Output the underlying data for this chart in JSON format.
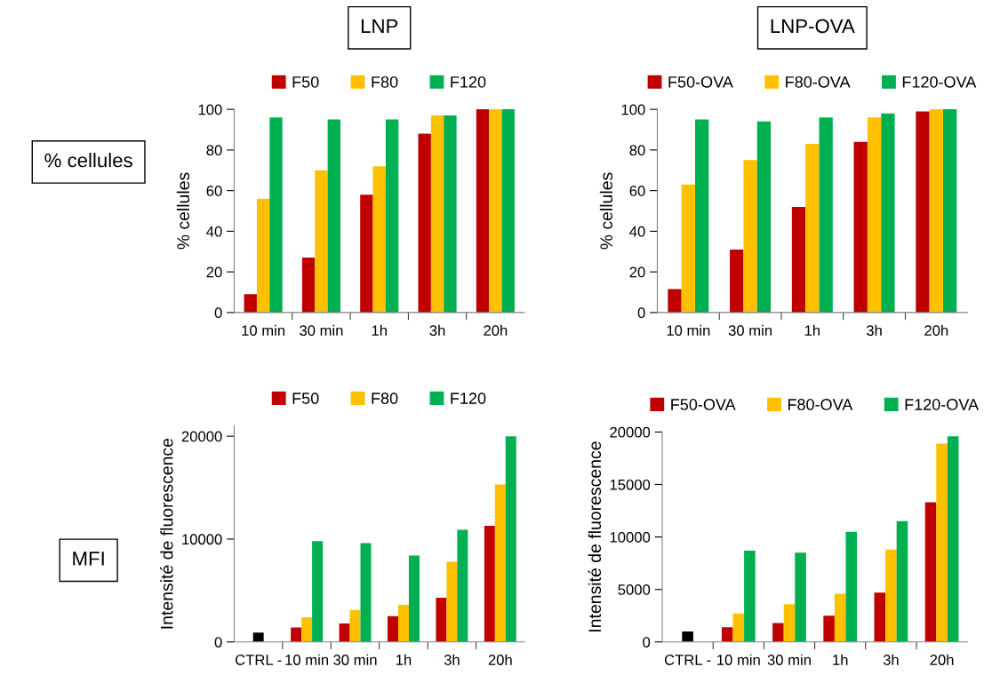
{
  "chart_data": [
    {
      "type": "bar",
      "title": "LNP",
      "annotations": [
        "% cellules"
      ],
      "ylabel": "% cellules",
      "categories": [
        "10 min",
        "30 min",
        "1h",
        "3h",
        "20h"
      ],
      "ylim": [
        0,
        100
      ],
      "yticks": [
        0,
        20,
        40,
        60,
        80,
        100
      ],
      "legend": "top",
      "grid": false,
      "series": [
        {
          "name": "F50",
          "color": "#c00000",
          "values": [
            9,
            27,
            58,
            88,
            100
          ]
        },
        {
          "name": "F80",
          "color": "#ffc000",
          "values": [
            56,
            70,
            72,
            97,
            100
          ]
        },
        {
          "name": "F120",
          "color": "#00b050",
          "values": [
            96,
            95,
            95,
            97,
            100
          ]
        }
      ]
    },
    {
      "type": "bar",
      "title": "LNP-OVA",
      "ylabel": "% cellules",
      "categories": [
        "10 min",
        "30 min",
        "1h",
        "3h",
        "20h"
      ],
      "ylim": [
        0,
        100
      ],
      "yticks": [
        0,
        20,
        40,
        60,
        80,
        100
      ],
      "legend": "top",
      "grid": false,
      "series": [
        {
          "name": "F50-OVA",
          "color": "#c00000",
          "values": [
            11.5,
            31,
            52,
            84,
            99
          ]
        },
        {
          "name": "F80-OVA",
          "color": "#ffc000",
          "values": [
            63,
            75,
            83,
            96,
            100
          ]
        },
        {
          "name": "F120-OVA",
          "color": "#00b050",
          "values": [
            95,
            94,
            96,
            98,
            100
          ]
        }
      ]
    },
    {
      "type": "bar",
      "annotations": [
        "MFI"
      ],
      "ylabel": "Intensité de fluorescence",
      "categories": [
        "CTRL -",
        "10 min",
        "30 min",
        "1h",
        "3h",
        "20h"
      ],
      "ylim": [
        0,
        21000
      ],
      "yticks": [
        0,
        10000,
        20000
      ],
      "legend": "top",
      "grid": false,
      "series": [
        {
          "color": "#000000",
          "values": [
            900,
            null,
            null,
            null,
            null,
            null
          ]
        },
        {
          "name": "F50",
          "color": "#c00000",
          "values": [
            null,
            1400,
            1800,
            2500,
            4300,
            11300
          ]
        },
        {
          "name": "F80",
          "color": "#ffc000",
          "values": [
            null,
            2400,
            3100,
            3600,
            7800,
            15300
          ]
        },
        {
          "name": "F120",
          "color": "#00b050",
          "values": [
            null,
            9800,
            9600,
            8400,
            10900,
            20000
          ]
        }
      ]
    },
    {
      "type": "bar",
      "ylabel": "Intensité de fluorescence",
      "categories": [
        "CTRL -",
        "10 min",
        "30 min",
        "1h",
        "3h",
        "20h"
      ],
      "ylim": [
        0,
        20000
      ],
      "yticks": [
        0,
        5000,
        10000,
        15000,
        20000
      ],
      "legend": "top",
      "grid": false,
      "series": [
        {
          "color": "#000000",
          "values": [
            1000,
            null,
            null,
            null,
            null,
            null
          ]
        },
        {
          "name": "F50-OVA",
          "color": "#c00000",
          "values": [
            null,
            1400,
            1800,
            2500,
            4700,
            13300
          ]
        },
        {
          "name": "F80-OVA",
          "color": "#ffc000",
          "values": [
            null,
            2700,
            3600,
            4600,
            8800,
            18900
          ]
        },
        {
          "name": "F120-OVA",
          "color": "#00b050",
          "values": [
            null,
            8700,
            8500,
            10500,
            11500,
            19600
          ]
        }
      ]
    }
  ]
}
